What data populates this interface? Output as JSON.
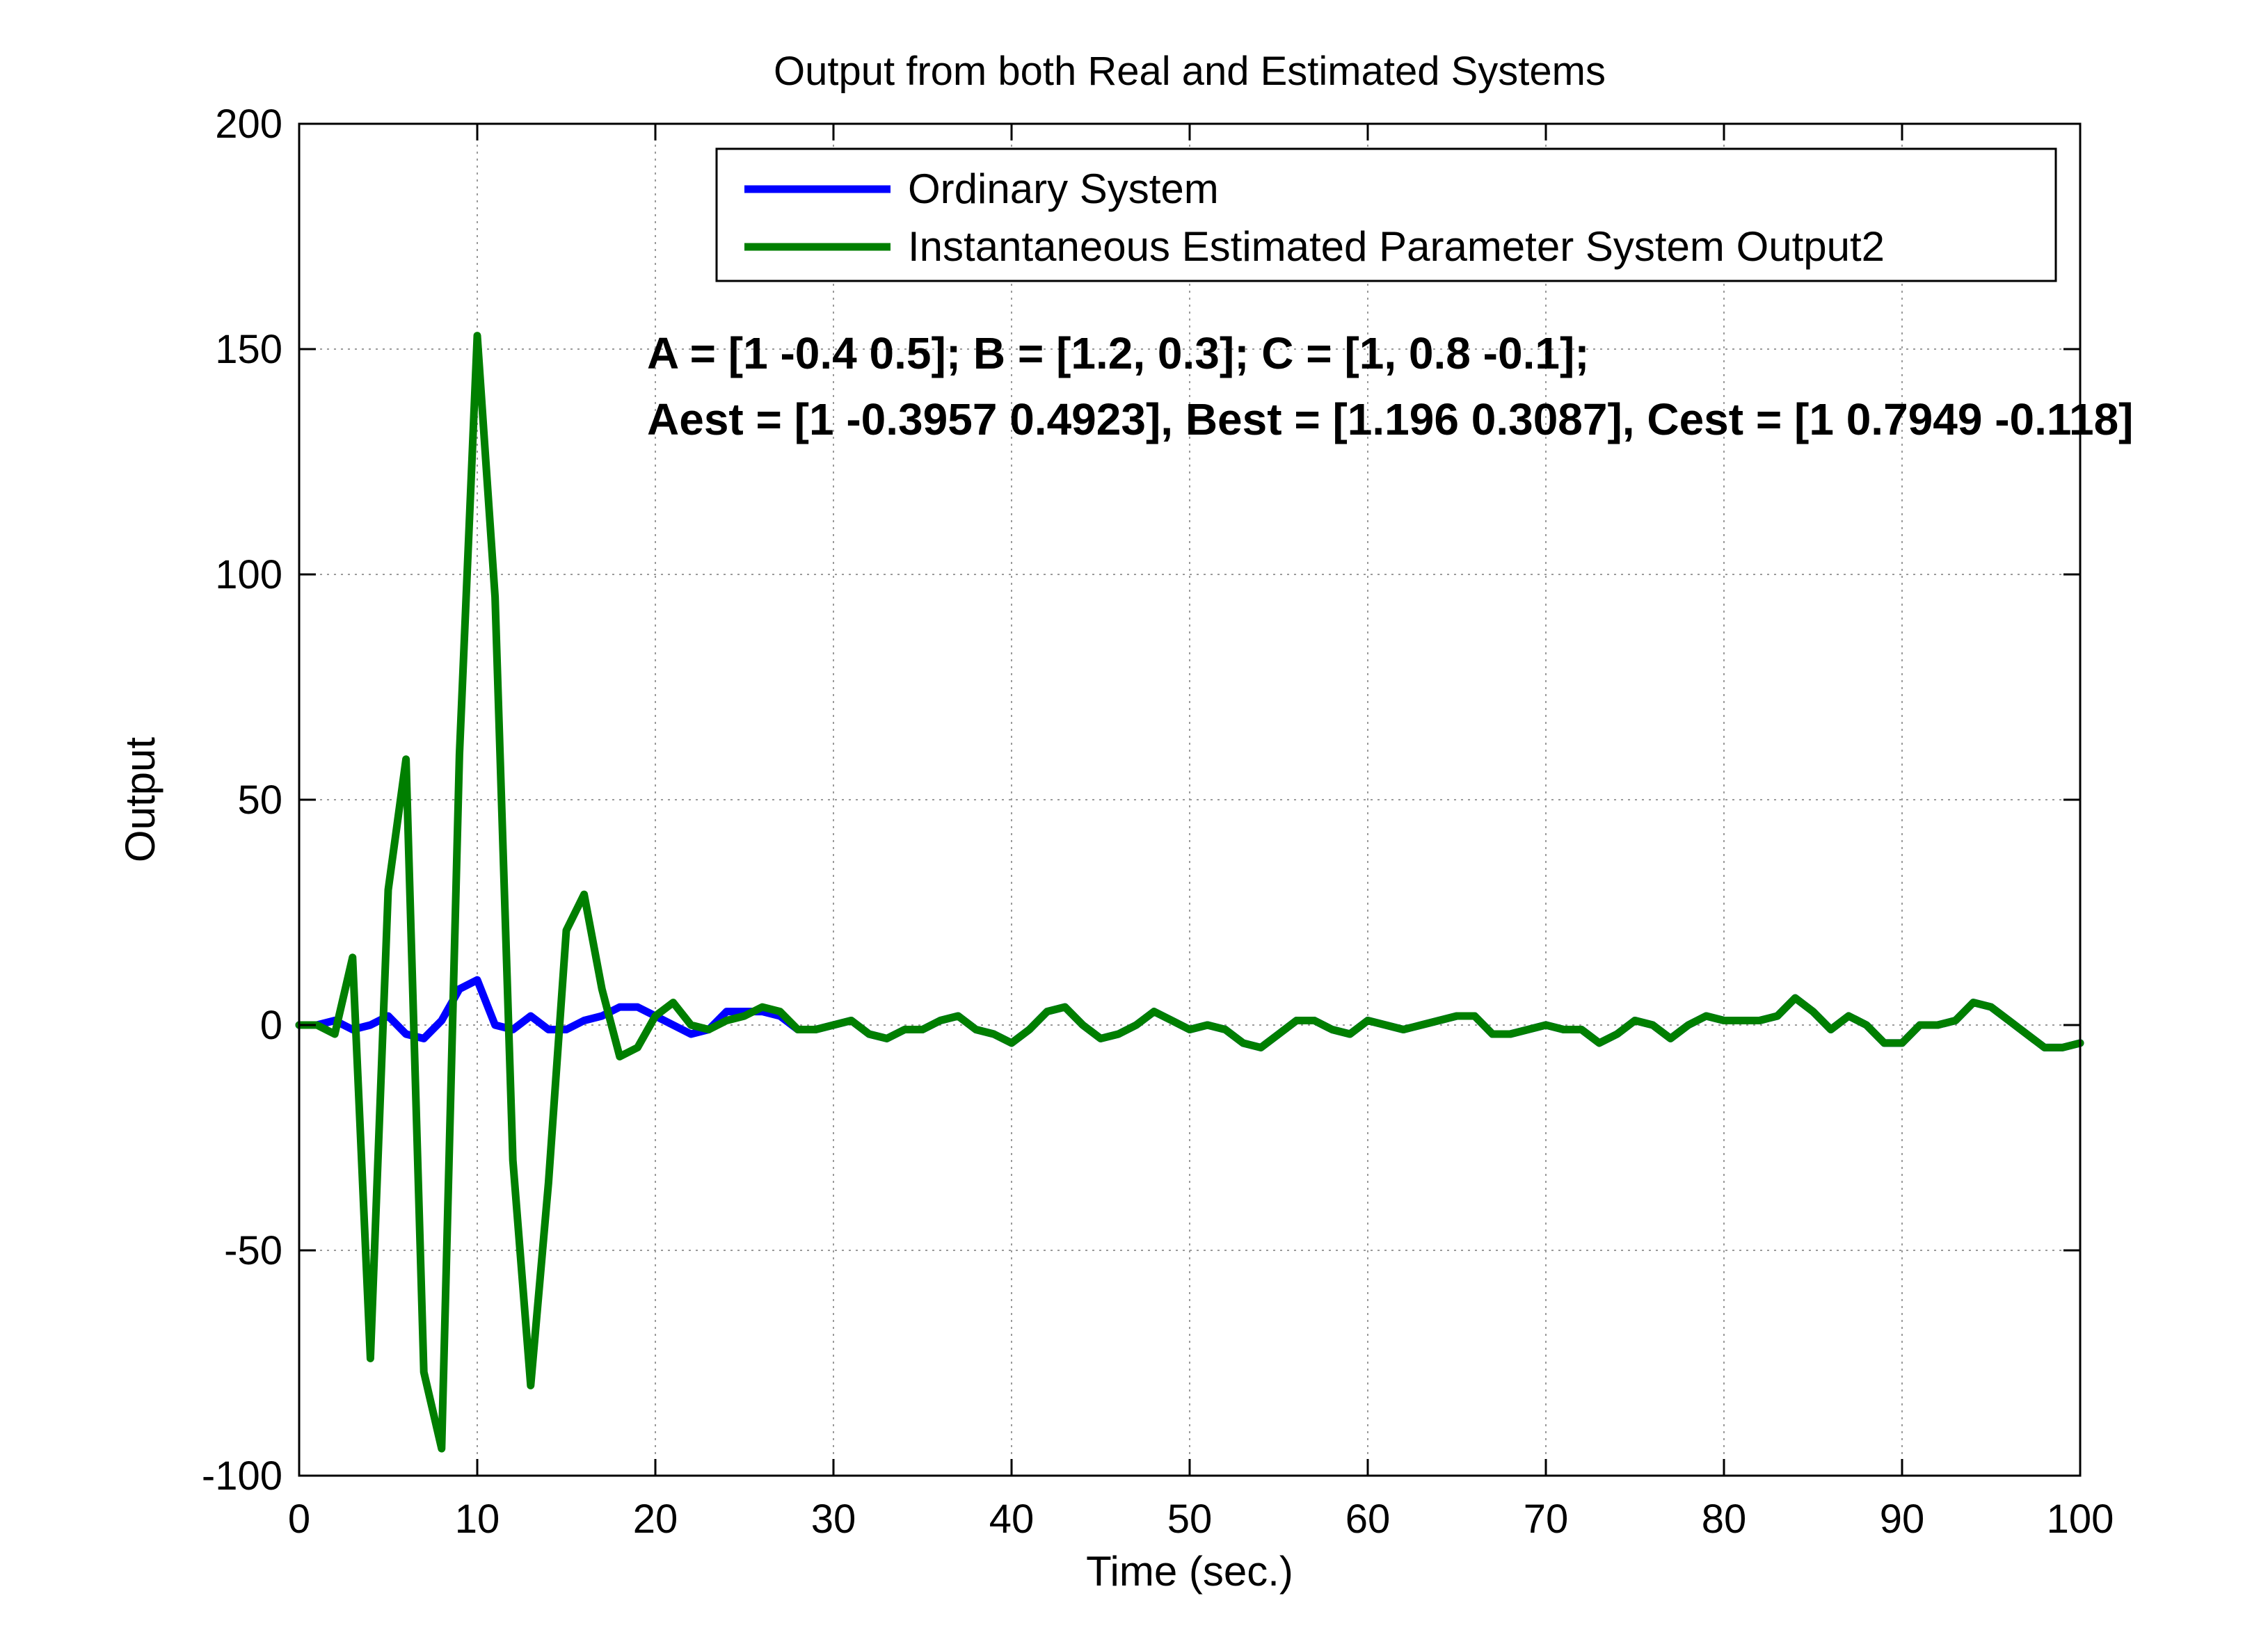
{
  "chart_data": {
    "type": "line",
    "title": "Output from both Real and Estimated Systems",
    "xlabel": "Time (sec.)",
    "ylabel": "Output",
    "xlim": [
      0,
      100
    ],
    "ylim": [
      -100,
      200
    ],
    "xticks": [
      0,
      10,
      20,
      30,
      40,
      50,
      60,
      70,
      80,
      90,
      100
    ],
    "yticks": [
      -100,
      -50,
      0,
      50,
      100,
      150,
      200
    ],
    "grid": true,
    "legend_position": "top-right",
    "annotations": [
      "A = [1 -0.4 0.5]; B = [1.2, 0.3]; C = [1, 0.8 -0.1];",
      "Aest = [1 -0.3957 0.4923], Best = [1.196 0.3087], Cest = [1 0.7949 -0.118]"
    ],
    "x": [
      0,
      1,
      2,
      3,
      4,
      5,
      6,
      7,
      8,
      9,
      10,
      11,
      12,
      13,
      14,
      15,
      16,
      17,
      18,
      19,
      20,
      21,
      22,
      23,
      24,
      25,
      26,
      27,
      28,
      29,
      30,
      31,
      32,
      33,
      34,
      35,
      36,
      37,
      38,
      39,
      40,
      41,
      42,
      43,
      44,
      45,
      46,
      47,
      48,
      49,
      50,
      51,
      52,
      53,
      54,
      55,
      56,
      57,
      58,
      59,
      60,
      61,
      62,
      63,
      64,
      65,
      66,
      67,
      68,
      69,
      70,
      71,
      72,
      73,
      74,
      75,
      76,
      77,
      78,
      79,
      80,
      81,
      82,
      83,
      84,
      85,
      86,
      87,
      88,
      89,
      90,
      91,
      92,
      93,
      94,
      95,
      96,
      97,
      98,
      99,
      100
    ],
    "series": [
      {
        "name": "Ordinary System",
        "color": "#0000ff",
        "values": [
          0,
          0,
          1,
          -1,
          0,
          2,
          -2,
          -3,
          1,
          8,
          10,
          0,
          -1,
          2,
          -1,
          -1,
          1,
          2,
          4,
          4,
          2,
          0,
          -2,
          -1,
          3,
          3,
          3,
          2,
          -1,
          -1,
          0,
          1,
          -2,
          -3,
          -1,
          -1,
          1,
          2,
          -1,
          -2,
          -4,
          -1,
          3,
          4,
          0,
          -3,
          -2,
          0,
          3,
          1,
          -1,
          0,
          -1,
          -4,
          -5,
          -2,
          1,
          1,
          -1,
          -2,
          1,
          0,
          -1,
          0,
          1,
          2,
          2,
          -2,
          -2,
          -1,
          0,
          -1,
          -1,
          -4,
          -2,
          1,
          0,
          -3,
          0,
          2,
          1,
          1,
          1,
          2,
          6,
          3,
          -1,
          2,
          0,
          -4,
          -4,
          0,
          0,
          1,
          5,
          4,
          1,
          -2,
          -5,
          -5,
          -4
        ]
      },
      {
        "name": "Instantaneous Estimated Parameter System Output2",
        "color": "#007f00",
        "values": [
          0,
          0,
          -2,
          15,
          -74,
          30,
          59,
          -77,
          -94,
          60,
          153,
          95,
          -30,
          -80,
          -35,
          21,
          29,
          8,
          -7,
          -5,
          2,
          5,
          0,
          -1,
          1,
          2,
          4,
          3,
          -1,
          -1,
          0,
          1,
          -2,
          -3,
          -1,
          -1,
          1,
          2,
          -1,
          -2,
          -4,
          -1,
          3,
          4,
          0,
          -3,
          -2,
          0,
          3,
          1,
          -1,
          0,
          -1,
          -4,
          -5,
          -2,
          1,
          1,
          -1,
          -2,
          1,
          0,
          -1,
          0,
          1,
          2,
          2,
          -2,
          -2,
          -1,
          0,
          -1,
          -1,
          -4,
          -2,
          1,
          0,
          -3,
          0,
          2,
          1,
          1,
          1,
          2,
          6,
          3,
          -1,
          2,
          0,
          -4,
          -4,
          0,
          0,
          1,
          5,
          4,
          1,
          -2,
          -5,
          -5,
          -4
        ]
      }
    ]
  }
}
